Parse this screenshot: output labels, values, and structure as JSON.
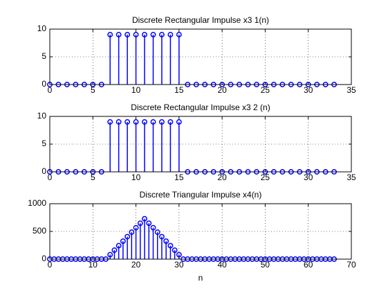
{
  "chart_data": [
    {
      "type": "stem",
      "title": "Discrete Rectangular Impulse x3 1(n)",
      "color": "#0000ff",
      "grid": true,
      "x": [
        0,
        1,
        2,
        3,
        4,
        5,
        6,
        7,
        8,
        9,
        10,
        11,
        12,
        13,
        14,
        15,
        16,
        17,
        18,
        19,
        20,
        21,
        22,
        23,
        24,
        25,
        26,
        27,
        28,
        29,
        30,
        31,
        32,
        33
      ],
      "values": [
        0,
        0,
        0,
        0,
        0,
        0,
        0,
        9,
        9,
        9,
        9,
        9,
        9,
        9,
        9,
        9,
        0,
        0,
        0,
        0,
        0,
        0,
        0,
        0,
        0,
        0,
        0,
        0,
        0,
        0,
        0,
        0,
        0,
        0
      ],
      "xlim": [
        0,
        35
      ],
      "xticks": [
        0,
        5,
        10,
        15,
        20,
        25,
        30,
        35
      ],
      "ylim": [
        0,
        10
      ],
      "yticks": [
        0,
        5,
        10
      ]
    },
    {
      "type": "stem",
      "title": "Discrete Rectangular Impulse x3 2 (n)",
      "color": "#0000ff",
      "grid": true,
      "x": [
        0,
        1,
        2,
        3,
        4,
        5,
        6,
        7,
        8,
        9,
        10,
        11,
        12,
        13,
        14,
        15,
        16,
        17,
        18,
        19,
        20,
        21,
        22,
        23,
        24,
        25,
        26,
        27,
        28,
        29,
        30,
        31,
        32,
        33
      ],
      "values": [
        0,
        0,
        0,
        0,
        0,
        0,
        0,
        9,
        9,
        9,
        9,
        9,
        9,
        9,
        9,
        9,
        0,
        0,
        0,
        0,
        0,
        0,
        0,
        0,
        0,
        0,
        0,
        0,
        0,
        0,
        0,
        0,
        0,
        0
      ],
      "xlim": [
        0,
        35
      ],
      "xticks": [
        0,
        5,
        10,
        15,
        20,
        25,
        30,
        35
      ],
      "ylim": [
        0,
        10
      ],
      "yticks": [
        0,
        5,
        10
      ]
    },
    {
      "type": "stem",
      "title": "Discrete Triangular Impulse x4(n)",
      "xlabel": "n",
      "color": "#0000ff",
      "grid": true,
      "x": [
        0,
        1,
        2,
        3,
        4,
        5,
        6,
        7,
        8,
        9,
        10,
        11,
        12,
        13,
        14,
        15,
        16,
        17,
        18,
        19,
        20,
        21,
        22,
        23,
        24,
        25,
        26,
        27,
        28,
        29,
        30,
        31,
        32,
        33,
        34,
        35,
        36,
        37,
        38,
        39,
        40,
        41,
        42,
        43,
        44,
        45,
        46,
        47,
        48,
        49,
        50,
        51,
        52,
        53,
        54,
        55,
        56,
        57,
        58,
        59,
        60,
        61,
        62,
        63,
        64,
        65,
        66
      ],
      "values": [
        0,
        0,
        0,
        0,
        0,
        0,
        0,
        0,
        0,
        0,
        0,
        0,
        0,
        0,
        81,
        162,
        243,
        324,
        405,
        486,
        567,
        648,
        729,
        648,
        567,
        486,
        405,
        324,
        243,
        162,
        81,
        0,
        0,
        0,
        0,
        0,
        0,
        0,
        0,
        0,
        0,
        0,
        0,
        0,
        0,
        0,
        0,
        0,
        0,
        0,
        0,
        0,
        0,
        0,
        0,
        0,
        0,
        0,
        0,
        0,
        0,
        0,
        0,
        0,
        0,
        0,
        0
      ],
      "xlim": [
        0,
        70
      ],
      "xticks": [
        0,
        10,
        20,
        30,
        40,
        50,
        60,
        70
      ],
      "ylim": [
        0,
        1000
      ],
      "yticks": [
        0,
        500,
        1000
      ]
    }
  ]
}
